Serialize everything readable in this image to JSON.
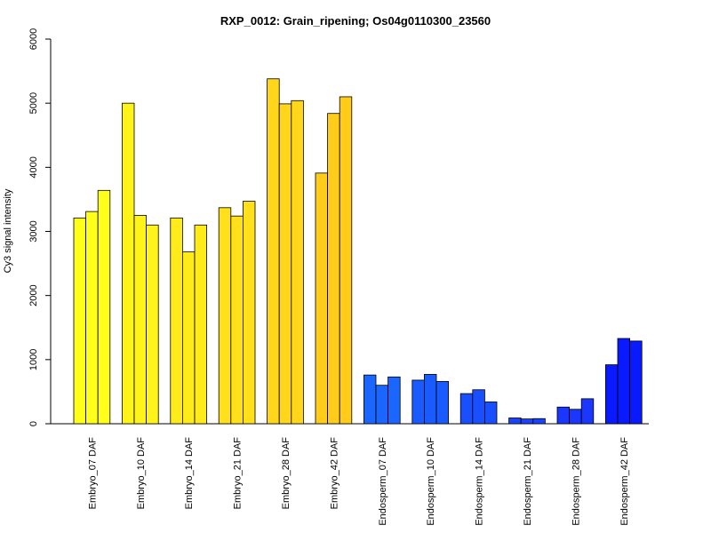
{
  "chart_data": {
    "type": "bar",
    "title": "RXP_0012: Grain_ripening; Os04g0110300_23560",
    "xlabel": "",
    "ylabel": "Cy3 signal intensity",
    "ylim": [
      0,
      6000
    ],
    "yticks": [
      0,
      1000,
      2000,
      3000,
      4000,
      5000,
      6000
    ],
    "grid": false,
    "replicates_per_group": 3,
    "groups": [
      {
        "label": "Embryo_07 DAF",
        "color": "#FFFF1A",
        "values": [
          3210,
          3310,
          3640
        ]
      },
      {
        "label": "Embryo_10 DAF",
        "color": "#FFF41A",
        "values": [
          5000,
          3250,
          3100
        ]
      },
      {
        "label": "Embryo_14 DAF",
        "color": "#FFEA1A",
        "values": [
          3210,
          2680,
          3100
        ]
      },
      {
        "label": "Embryo_21 DAF",
        "color": "#FFE01A",
        "values": [
          3370,
          3240,
          3470
        ]
      },
      {
        "label": "Embryo_28 DAF",
        "color": "#FFD61A",
        "values": [
          5380,
          4990,
          5040
        ]
      },
      {
        "label": "Embryo_42 DAF",
        "color": "#FFCC1A",
        "values": [
          3910,
          4840,
          5100
        ]
      },
      {
        "label": "Endosperm_07 DAF",
        "color": "#1A66FF",
        "values": [
          760,
          600,
          730
        ]
      },
      {
        "label": "Endosperm_10 DAF",
        "color": "#1A5BFF",
        "values": [
          680,
          770,
          660
        ]
      },
      {
        "label": "Endosperm_14 DAF",
        "color": "#1A4FFF",
        "values": [
          470,
          530,
          340
        ]
      },
      {
        "label": "Endosperm_21 DAF",
        "color": "#1A43FF",
        "values": [
          90,
          75,
          80
        ]
      },
      {
        "label": "Endosperm_28 DAF",
        "color": "#1A36FF",
        "values": [
          260,
          225,
          390
        ]
      },
      {
        "label": "Endosperm_42 DAF",
        "color": "#0A1AFF",
        "values": [
          920,
          1330,
          1290
        ]
      }
    ]
  }
}
